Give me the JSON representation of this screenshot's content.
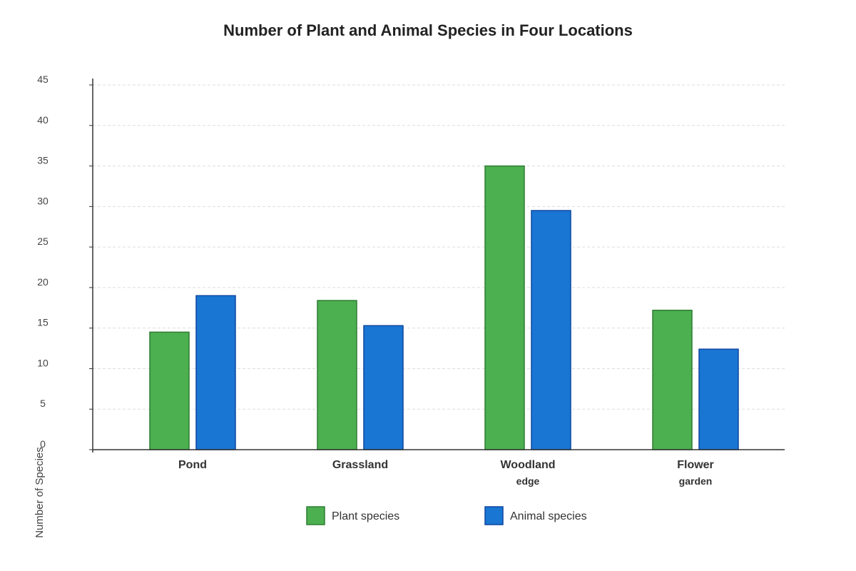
{
  "chart_data": {
    "type": "bar",
    "title": "Number of Plant and Animal Species in Four Locations",
    "ylabel": "Number of Species",
    "xlabel": "",
    "ylim": [
      0,
      45
    ],
    "yticks": [
      0,
      5,
      10,
      15,
      20,
      25,
      30,
      35,
      40,
      45
    ],
    "grid": true,
    "legend_position": "bottom-center",
    "categories": [
      {
        "lines": [
          "Pond"
        ]
      },
      {
        "lines": [
          "Grassland"
        ]
      },
      {
        "lines": [
          "Woodland",
          "edge"
        ]
      },
      {
        "lines": [
          "Flower",
          "garden"
        ]
      }
    ],
    "series": [
      {
        "name": "Plant species",
        "color": "#4caf50",
        "border": "#2e7d32",
        "values": [
          14.5,
          18.4,
          35.0,
          17.2
        ]
      },
      {
        "name": "Animal species",
        "color": "#1976d2",
        "border": "#0d47a1",
        "values": [
          19.0,
          15.3,
          29.5,
          12.4
        ]
      }
    ]
  }
}
